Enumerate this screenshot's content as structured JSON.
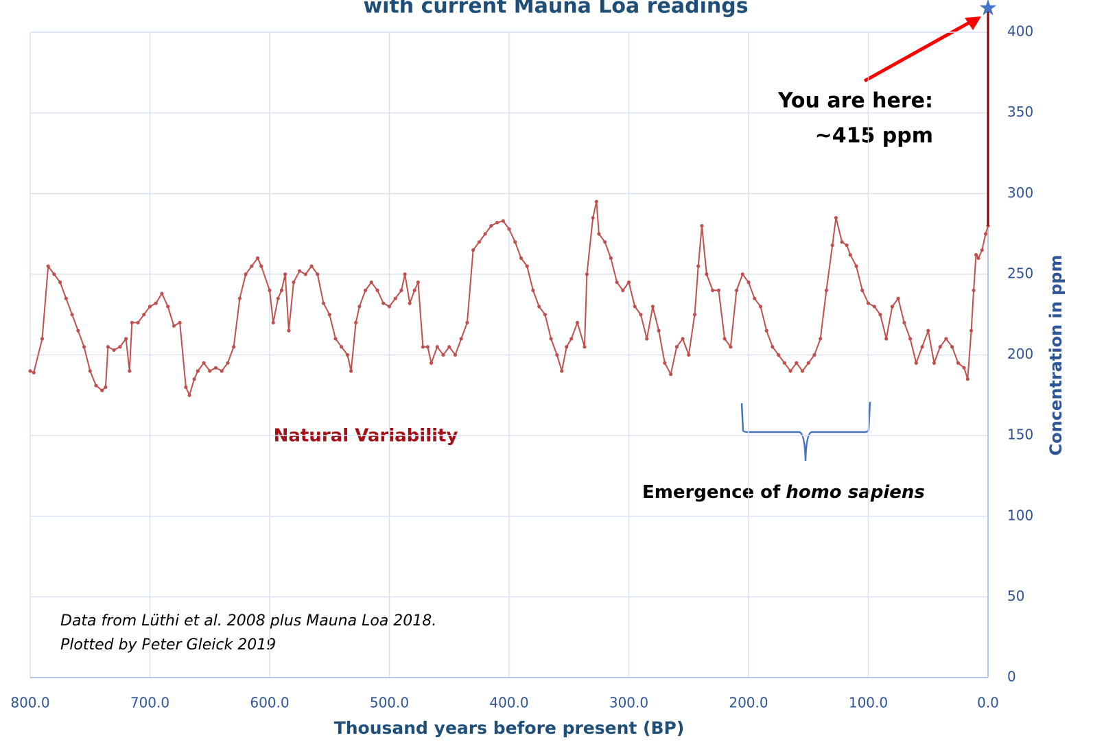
{
  "chart_data": {
    "type": "line",
    "title": "with current Mauna Loa readings",
    "x_label": "Thousand years before present (BP)",
    "y_label": "Concentration in ppm",
    "color": "#c0504d",
    "current_color": "#4472c4",
    "xlim": [
      800,
      0
    ],
    "ylim": [
      0,
      400
    ],
    "xticks": [
      {
        "value": 800,
        "label": "800.0"
      },
      {
        "value": 700,
        "label": "700.0"
      },
      {
        "value": 600,
        "label": "600.0"
      },
      {
        "value": 500,
        "label": "500.0"
      },
      {
        "value": 400,
        "label": "400.0"
      },
      {
        "value": 300,
        "label": "300.0"
      },
      {
        "value": 200,
        "label": "200.0"
      },
      {
        "value": 100,
        "label": "100.0"
      },
      {
        "value": 0,
        "label": "0.0"
      }
    ],
    "yticks": [
      0,
      50,
      100,
      150,
      200,
      250,
      300,
      350,
      400
    ],
    "grid": true,
    "x": [
      800,
      797,
      790,
      785,
      780,
      775,
      770,
      765,
      760,
      755,
      750,
      745,
      740,
      737,
      735,
      730,
      725,
      720,
      717,
      715,
      710,
      705,
      700,
      695,
      690,
      685,
      680,
      675,
      670,
      667,
      663,
      660,
      655,
      650,
      645,
      640,
      635,
      630,
      625,
      620,
      615,
      610,
      607,
      600,
      597,
      593,
      590,
      587,
      584,
      580,
      575,
      570,
      565,
      560,
      555,
      550,
      545,
      540,
      535,
      532,
      528,
      525,
      520,
      515,
      510,
      505,
      500,
      495,
      490,
      487,
      483,
      479,
      476,
      472,
      468,
      465,
      460,
      455,
      450,
      445,
      440,
      435,
      430,
      425,
      420,
      415,
      410,
      405,
      400,
      395,
      390,
      385,
      380,
      375,
      370,
      365,
      360,
      356,
      352,
      348,
      343,
      337,
      335,
      330,
      327,
      325,
      320,
      315,
      310,
      305,
      300,
      295,
      290,
      285,
      280,
      275,
      270,
      265,
      260,
      255,
      250,
      245,
      242,
      239,
      235,
      230,
      225,
      220,
      215,
      210,
      205,
      200,
      195,
      190,
      185,
      180,
      175,
      170,
      165,
      160,
      155,
      150,
      145,
      140,
      135,
      130,
      127,
      122,
      118,
      115,
      110,
      105,
      100,
      95,
      90,
      85,
      80,
      75,
      70,
      65,
      60,
      55,
      50,
      45,
      40,
      35,
      30,
      25,
      20,
      17,
      14,
      12,
      10,
      8,
      5,
      2,
      0
    ],
    "values": [
      190,
      189,
      210,
      255,
      250,
      245,
      235,
      225,
      215,
      205,
      190,
      181,
      178,
      180,
      205,
      203,
      205,
      210,
      190,
      220,
      220,
      225,
      230,
      232,
      238,
      230,
      218,
      220,
      180,
      175,
      185,
      190,
      195,
      190,
      192,
      190,
      195,
      205,
      235,
      250,
      255,
      260,
      255,
      240,
      220,
      235,
      240,
      250,
      215,
      245,
      252,
      250,
      255,
      250,
      232,
      225,
      210,
      205,
      200,
      190,
      220,
      230,
      240,
      245,
      240,
      232,
      230,
      235,
      240,
      250,
      232,
      240,
      245,
      205,
      205,
      195,
      205,
      200,
      205,
      200,
      210,
      220,
      265,
      270,
      275,
      280,
      282,
      283,
      278,
      270,
      260,
      255,
      240,
      230,
      225,
      210,
      200,
      190,
      205,
      210,
      220,
      205,
      250,
      285,
      295,
      275,
      270,
      260,
      245,
      240,
      245,
      230,
      225,
      210,
      230,
      215,
      195,
      188,
      205,
      210,
      200,
      225,
      255,
      280,
      250,
      240,
      240,
      210,
      205,
      240,
      250,
      245,
      235,
      230,
      215,
      205,
      200,
      195,
      190,
      195,
      190,
      195,
      200,
      210,
      240,
      268,
      285,
      270,
      268,
      262,
      255,
      240,
      232,
      230,
      225,
      210,
      230,
      235,
      220,
      210,
      195,
      205,
      215,
      195,
      205,
      210,
      205,
      195,
      192,
      185,
      215,
      240,
      262,
      260,
      265,
      275,
      280
    ],
    "current": {
      "x": 0,
      "value": 415
    },
    "annotations": {
      "natural": "Natural Variability",
      "emergence": [
        "Emergence of",
        "homo sapiens"
      ],
      "here": [
        "You are here:",
        "~415 ppm"
      ],
      "source": [
        "Data from Lüthi et al. 2008 plus Mauna Loa 2018.",
        "Plotted by Peter Gleick 2019"
      ]
    }
  }
}
